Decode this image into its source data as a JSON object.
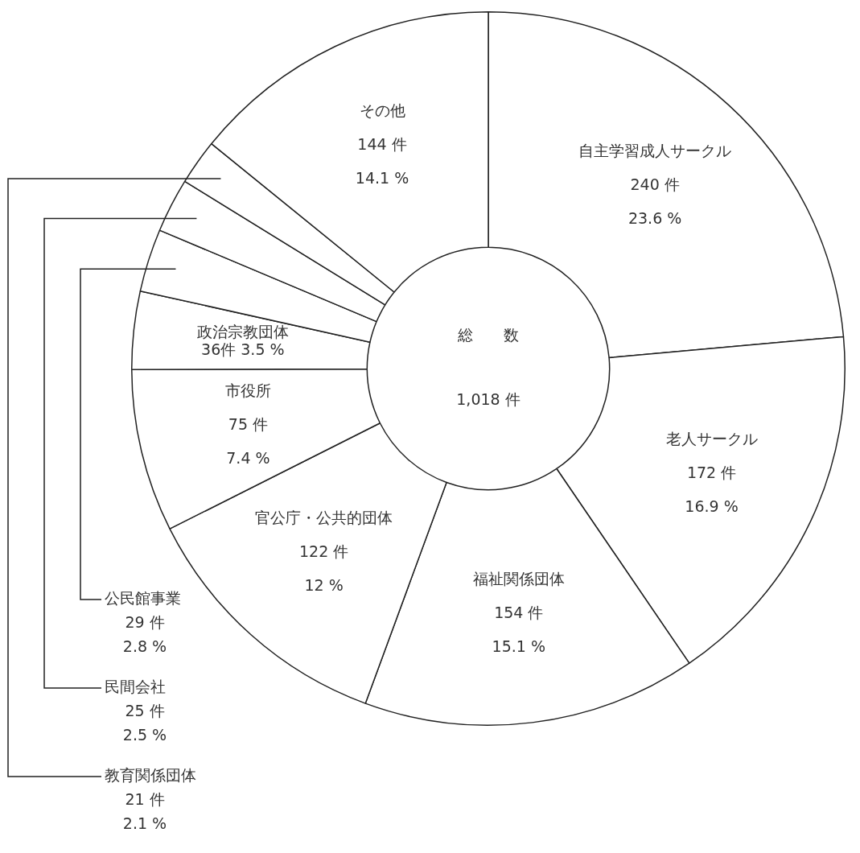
{
  "chart_data": {
    "type": "donut",
    "categories": [
      "自主学習成人サークル",
      "老人サークル",
      "福祉関係団体",
      "官公庁・公共的団体",
      "市役所",
      "政治宗教団体",
      "公民館事業",
      "民間会社",
      "教育関係団体",
      "その他"
    ],
    "values": [
      240,
      172,
      154,
      122,
      75,
      36,
      29,
      25,
      21,
      144
    ],
    "value_labels": [
      "240 件\n23.6 %",
      "172 件\n16.9 %",
      "154 件\n15.1 %",
      "122 件\n12 %",
      "75 件\n7.4 %",
      "36件 3.5 %",
      "29 件\n2.8 %",
      "25 件\n2.5 %",
      "21 件\n2.1 %",
      "144 件\n14.1 %"
    ],
    "colors": [
      "#ffffff",
      "#ffffff",
      "#ffffff",
      "#ffffff",
      "#ffffff",
      "#ffffff",
      "#ffffff",
      "#ffffff",
      "#ffffff",
      "#ffffff"
    ],
    "annotations": [
      "総　　数",
      "1,018 件"
    ],
    "legend": false
  }
}
